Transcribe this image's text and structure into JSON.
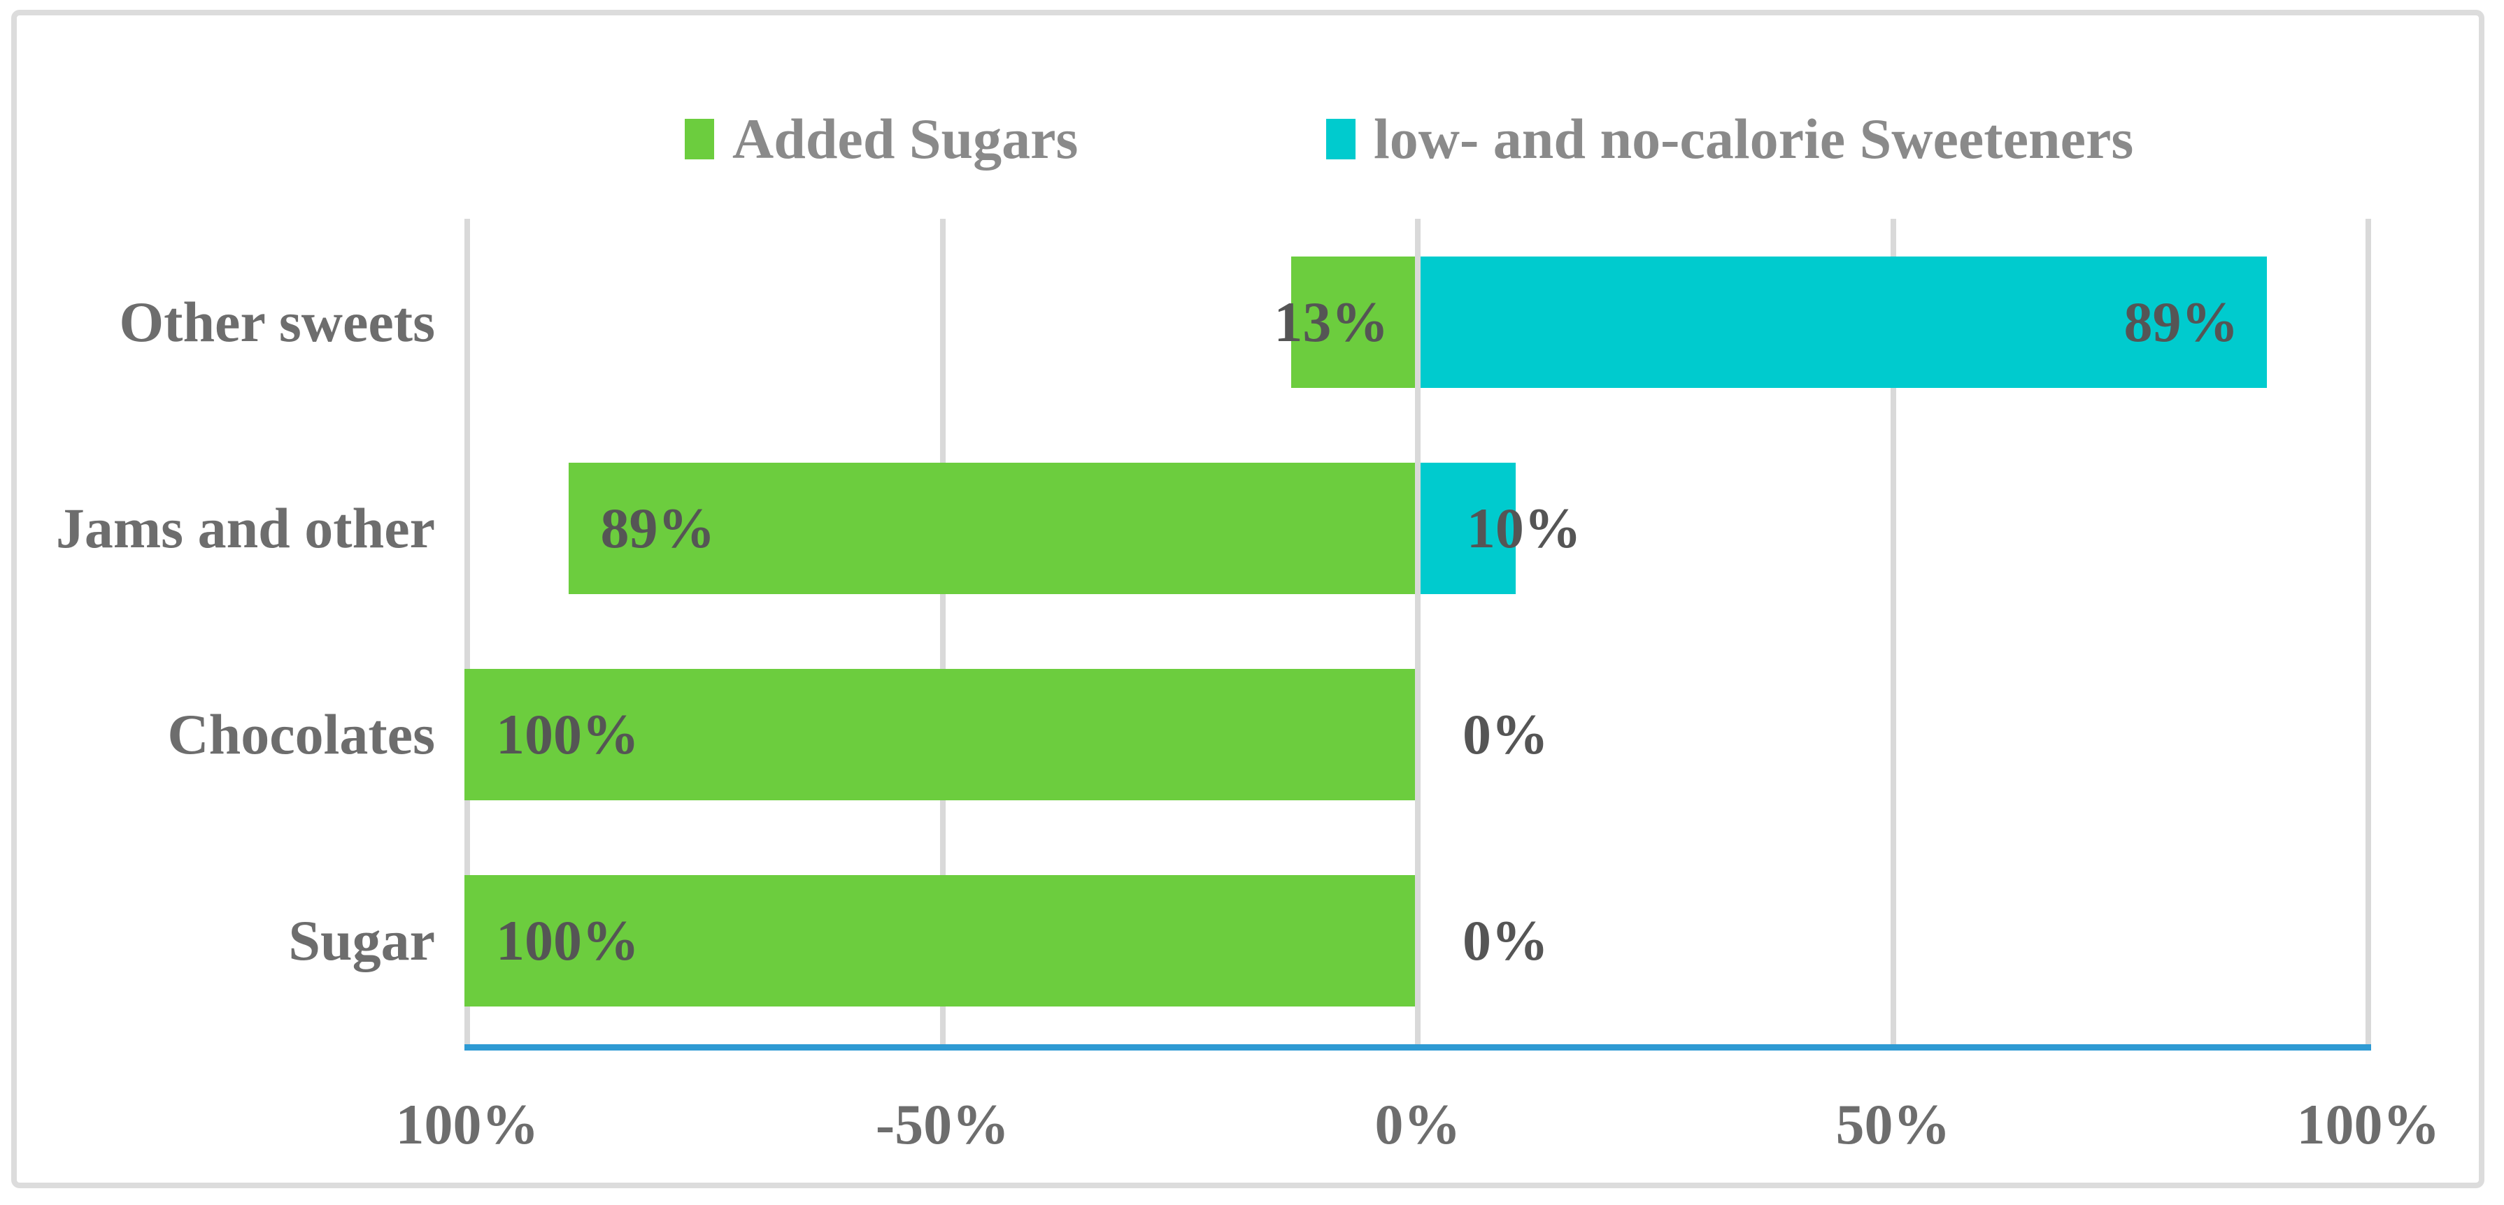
{
  "page": {
    "background": "#ffffff"
  },
  "card": {
    "border_color": "#DCDCDC",
    "background": "#ffffff"
  },
  "chart_data": {
    "type": "bar",
    "orientation": "horizontal",
    "diverging": true,
    "title": "",
    "categories": [
      "Other sweets",
      "Jams and other",
      "Chocolates",
      "Sugar"
    ],
    "series": [
      {
        "name": "Added Sugars",
        "color": "#6CCD3E",
        "side": "left",
        "values": [
          13,
          89,
          100,
          100
        ],
        "data_labels": [
          "13%",
          "89%",
          "100%",
          "100%"
        ]
      },
      {
        "name": "low- and no-calorie Sweeteners",
        "color": "#00CBCE",
        "side": "right",
        "values": [
          89,
          10,
          0,
          0
        ],
        "data_labels": [
          "89%",
          "10%",
          "0%",
          "0%"
        ]
      }
    ],
    "x_axis": {
      "range_pct": [
        -100,
        100
      ],
      "tick_labels": [
        "100%",
        "-50%",
        "0%",
        "50%",
        "100%"
      ],
      "tick_values": [
        -100,
        -50,
        0,
        50,
        100
      ],
      "gridlines": true,
      "gridline_color": "#D9D9D9",
      "baseline_color": "#2E9AD3"
    },
    "legend_position": "top",
    "text_colors": {
      "legend": "#8a8a8a",
      "category": "#6d6d6d",
      "tick": "#6d6d6d",
      "data_label": "#555555"
    }
  }
}
